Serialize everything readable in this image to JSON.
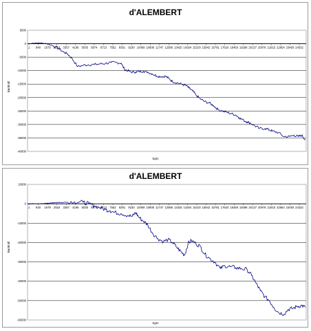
{
  "charts": [
    {
      "title": "d'ALEMBERT",
      "xlabel": "Spin",
      "ylabel": "Bankroll",
      "yticks": [
        "5000",
        "0",
        "-5000",
        "-10000",
        "-15000",
        "-20000",
        "-25000",
        "-30000",
        "-35000",
        "-40000"
      ],
      "xticks": [
        "1",
        "840",
        "1679",
        "2518",
        "3357",
        "4196",
        "5035",
        "5874",
        "6713",
        "7552",
        "8391",
        "9230",
        "10069",
        "10908",
        "11747",
        "12586",
        "13425",
        "14264",
        "15103",
        "15942",
        "16781",
        "17620",
        "18459",
        "19298",
        "20137",
        "20976",
        "21815",
        "22654",
        "23493",
        "24332"
      ]
    },
    {
      "title": "d'ALEMBERT",
      "xlabel": "Spin",
      "ylabel": "Bankroll",
      "yticks": [
        "10000",
        "0",
        "-10000",
        "-20000",
        "-30000",
        "-40000",
        "-50000",
        "-60000"
      ],
      "xticks": [
        "1",
        "840",
        "1679",
        "2518",
        "3357",
        "4196",
        "5035",
        "5874",
        "6713",
        "7552",
        "8391",
        "9230",
        "10069",
        "10908",
        "11747",
        "12586",
        "13425",
        "14264",
        "15103",
        "15942",
        "16781",
        "17620",
        "18459",
        "19298",
        "20137",
        "20976",
        "21815",
        "22654",
        "23493",
        "24332"
      ]
    }
  ],
  "colors": {
    "series": "#000080",
    "grid": "#000000",
    "plot_bg": "#ffffff"
  },
  "chart_data": [
    {
      "type": "line",
      "title": "d'ALEMBERT",
      "xlabel": "Spin",
      "ylabel": "Bankroll",
      "xlim": [
        1,
        25000
      ],
      "ylim": [
        -40000,
        5000
      ],
      "grid": true,
      "series": [
        {
          "x": [
            1,
            500,
            1000,
            1700,
            2300,
            2800,
            3200,
            3600,
            4000,
            4500,
            5000,
            5500,
            6000,
            6500,
            7000,
            7500,
            8000,
            8400,
            8700,
            9000,
            9300,
            9700,
            10000,
            10400,
            10800,
            11200,
            11600,
            12000,
            12400,
            12700,
            13000,
            13400,
            13800,
            14200,
            14500,
            14800,
            15100,
            15500,
            15900,
            16300,
            16700,
            17100,
            17500,
            17900,
            18300,
            18700,
            19000,
            19400,
            19700,
            20000,
            20400,
            20800,
            21300,
            21700,
            22000,
            22500,
            23000,
            23500,
            23900,
            24300,
            24600,
            24900
          ],
          "y": [
            0,
            200,
            300,
            100,
            -800,
            -1800,
            -3000,
            -3800,
            -5500,
            -8500,
            -8000,
            -7800,
            -7700,
            -7500,
            -7300,
            -7000,
            -7000,
            -7200,
            -9500,
            -10000,
            -10500,
            -10500,
            -10300,
            -10200,
            -10600,
            -11200,
            -12000,
            -12200,
            -12100,
            -13000,
            -14000,
            -14500,
            -15000,
            -15500,
            -16500,
            -17500,
            -19000,
            -20500,
            -21500,
            -22000,
            -23000,
            -24500,
            -25000,
            -25500,
            -26000,
            -26500,
            -27500,
            -28500,
            -29000,
            -29500,
            -30500,
            -31500,
            -31500,
            -32000,
            -32500,
            -33000,
            -34500,
            -34500,
            -34000,
            -34500,
            -34000,
            -35500
          ]
        }
      ]
    },
    {
      "type": "line",
      "title": "d'ALEMBERT",
      "xlabel": "Spin",
      "ylabel": "Bankroll",
      "xlim": [
        1,
        25000
      ],
      "ylim": [
        -60000,
        10000
      ],
      "grid": true,
      "series": [
        {
          "x": [
            1,
            800,
            1700,
            2500,
            3300,
            4200,
            5000,
            5500,
            6000,
            6500,
            7000,
            7400,
            7800,
            8400,
            9000,
            9400,
            9700,
            10000,
            10400,
            10800,
            11200,
            11700,
            12200,
            12600,
            13000,
            13400,
            13800,
            14100,
            14400,
            14700,
            15100,
            15500,
            15900,
            16300,
            16800,
            17300,
            17700,
            18200,
            18700,
            19200,
            19700,
            20100,
            20500,
            20900,
            21300,
            21700,
            22100,
            22500,
            23000,
            23400,
            23800,
            24200,
            24600,
            24900
          ],
          "y": [
            0,
            0,
            300,
            600,
            800,
            1000,
            800,
            0,
            -1000,
            -2000,
            -3000,
            -3500,
            -4500,
            -5000,
            -6000,
            -6500,
            -4500,
            -7000,
            -9000,
            -11000,
            -15000,
            -18000,
            -19500,
            -18500,
            -20000,
            -22500,
            -25000,
            -26500,
            -20500,
            -19000,
            -20500,
            -22000,
            -26000,
            -28000,
            -30000,
            -33500,
            -32000,
            -32500,
            -33000,
            -33500,
            -34000,
            -37000,
            -41000,
            -45000,
            -48000,
            -50000,
            -53500,
            -56000,
            -57000,
            -54500,
            -54000,
            -53000,
            -52500,
            -53500
          ]
        }
      ]
    }
  ]
}
